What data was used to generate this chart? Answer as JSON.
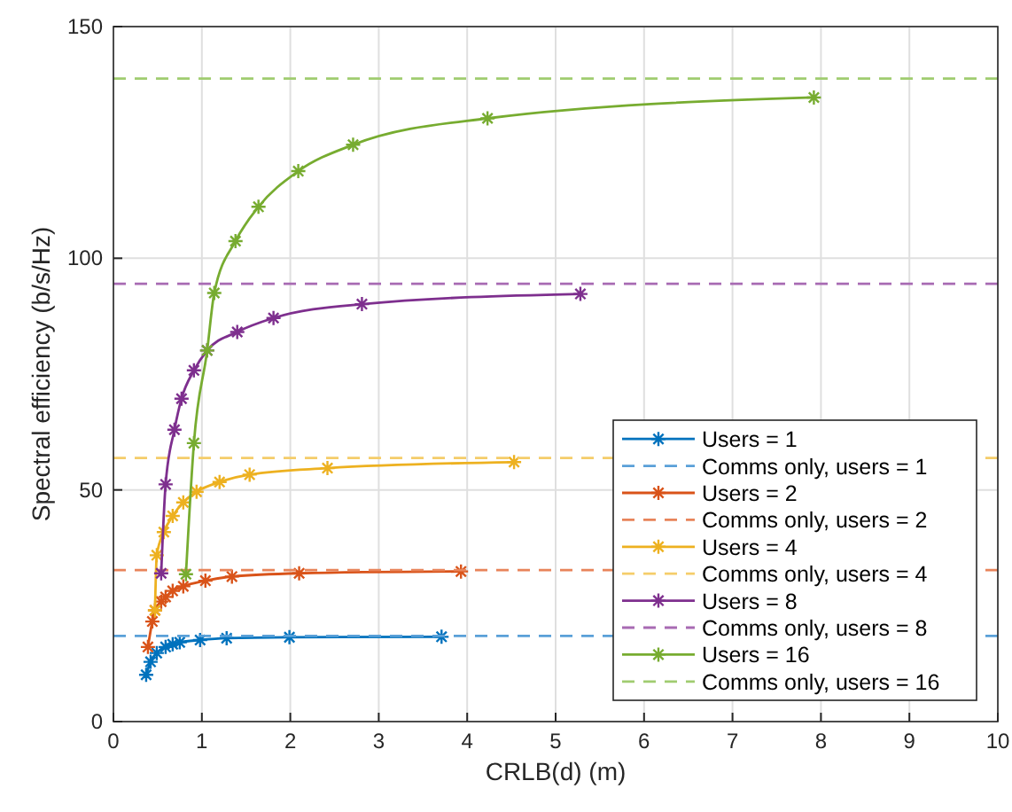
{
  "chart_data": {
    "type": "line",
    "xlabel": "CRLB(d) (m)",
    "ylabel": "Spectral efficiency (b/s/Hz)",
    "xlim": [
      0,
      10
    ],
    "xticks": [
      0,
      1,
      2,
      3,
      4,
      5,
      6,
      7,
      8,
      9,
      10
    ],
    "ylim": [
      0,
      150
    ],
    "yticks": [
      0,
      50,
      100,
      150
    ],
    "grid": true,
    "legend": "bottom right",
    "series": [
      {
        "name": "Users = 1",
        "color": "#0072bd",
        "marker": "cross",
        "line_style": "solid",
        "x": [
          0.37,
          0.42,
          0.49,
          0.59,
          0.67,
          0.75,
          0.98,
          1.28,
          1.99,
          3.71
        ],
        "values": [
          10.1,
          12.9,
          14.8,
          16.1,
          16.7,
          17.1,
          17.6,
          18.0,
          18.2,
          18.3
        ]
      },
      {
        "name": "Comms only, users = 1",
        "color": "#5aa0d8",
        "marker": "none",
        "line_style": "dashed",
        "x": [
          0,
          10
        ],
        "values": [
          18.5,
          18.5
        ]
      },
      {
        "name": "Users = 2",
        "color": "#d95319",
        "marker": "cross",
        "line_style": "solid",
        "x": [
          0.39,
          0.44,
          0.47,
          0.54,
          0.59,
          0.67,
          0.79,
          1.04,
          1.34,
          2.1,
          3.93
        ],
        "values": [
          16.1,
          21.6,
          24.0,
          25.9,
          26.9,
          28.2,
          29.2,
          30.4,
          31.3,
          32.0,
          32.4
        ]
      },
      {
        "name": "Comms only, users = 2",
        "color": "#e8845a",
        "marker": "none",
        "line_style": "dashed",
        "x": [
          0,
          10
        ],
        "values": [
          32.7,
          32.7
        ]
      },
      {
        "name": "Users = 4",
        "color": "#edb120",
        "marker": "cross",
        "line_style": "solid",
        "x": [
          0.47,
          0.49,
          0.57,
          0.67,
          0.79,
          0.94,
          1.2,
          1.54,
          2.42,
          4.53
        ],
        "values": [
          24.0,
          35.9,
          40.9,
          44.4,
          47.3,
          49.6,
          51.7,
          53.3,
          54.7,
          56.0
        ]
      },
      {
        "name": "Comms only, users = 4",
        "color": "#f5cd6a",
        "marker": "none",
        "line_style": "dashed",
        "x": [
          0,
          10
        ],
        "values": [
          56.9,
          56.9
        ]
      },
      {
        "name": "Users = 8",
        "color": "#7e2f8e",
        "marker": "cross",
        "line_style": "solid",
        "x": [
          0.54,
          0.59,
          0.69,
          0.77,
          0.91,
          1.06,
          1.4,
          1.81,
          2.81,
          5.28
        ],
        "values": [
          32.0,
          51.2,
          63.0,
          69.7,
          75.8,
          80.1,
          84.1,
          87.1,
          90.1,
          92.3
        ]
      },
      {
        "name": "Comms only, users = 8",
        "color": "#a86bb3",
        "marker": "none",
        "line_style": "dashed",
        "x": [
          0,
          10
        ],
        "values": [
          94.5,
          94.5
        ]
      },
      {
        "name": "Users = 16",
        "color": "#77ac30",
        "marker": "cross",
        "line_style": "solid",
        "x": [
          0.82,
          0.91,
          1.06,
          1.14,
          1.38,
          1.64,
          2.09,
          2.71,
          4.23,
          7.92
        ],
        "values": [
          31.8,
          60.1,
          80.1,
          92.5,
          103.7,
          111.1,
          118.8,
          124.5,
          130.2,
          134.7
        ]
      },
      {
        "name": "Comms only, users = 16",
        "color": "#a0cc70",
        "marker": "none",
        "line_style": "dashed",
        "x": [
          0,
          10
        ],
        "values": [
          138.8,
          138.8
        ]
      }
    ]
  }
}
